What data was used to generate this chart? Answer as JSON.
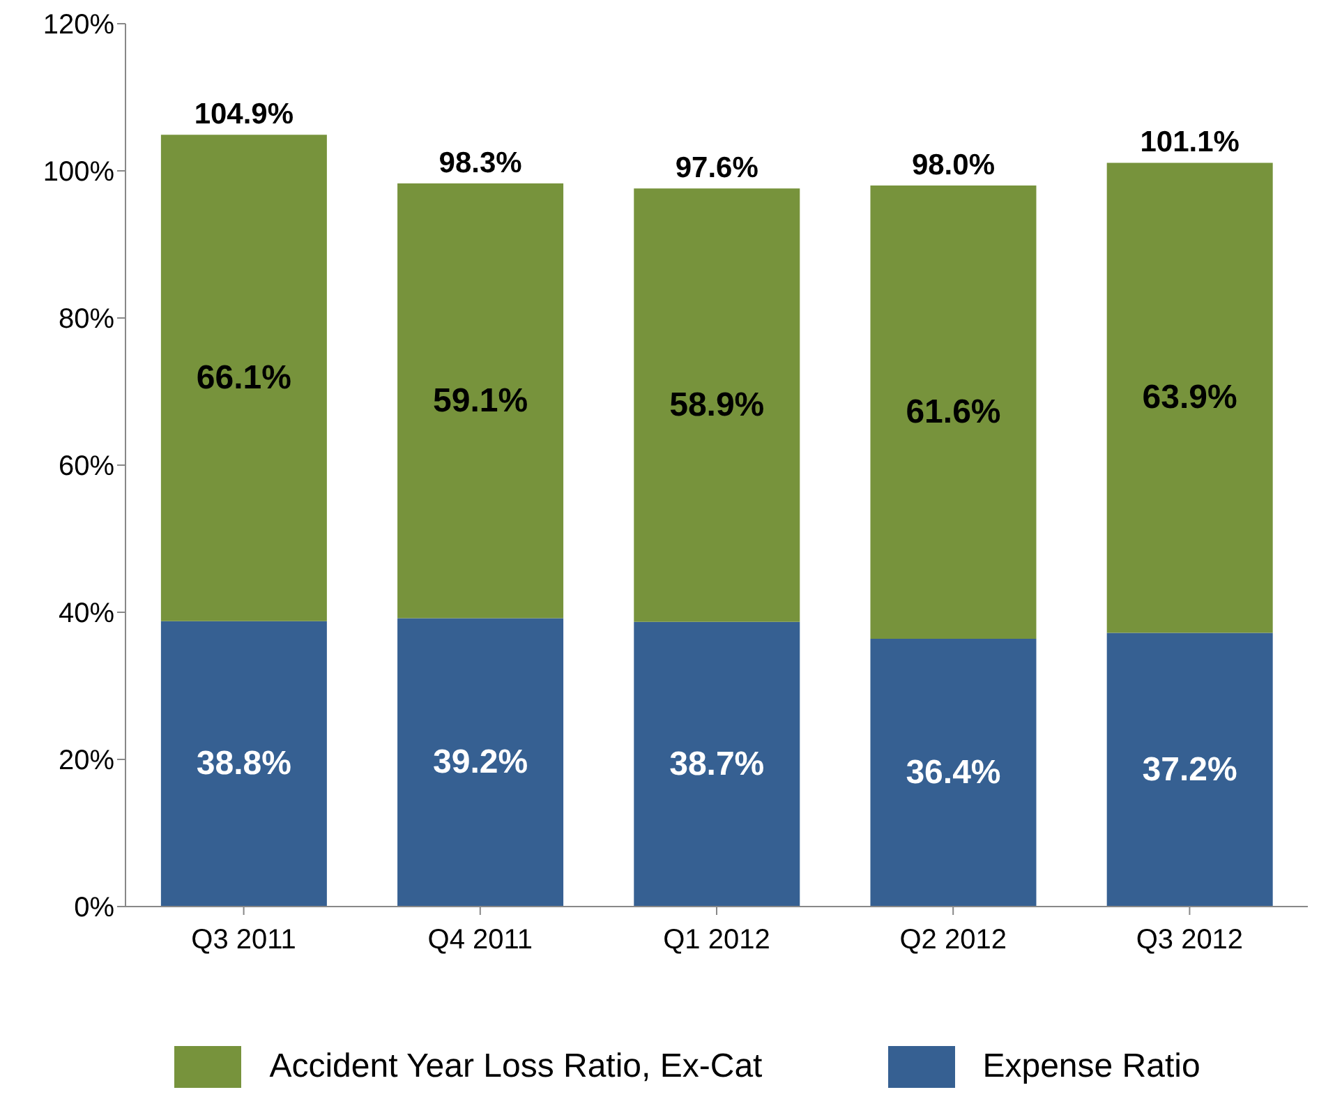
{
  "chart_data": {
    "type": "bar",
    "stacked": true,
    "categories": [
      "Q3 2011",
      "Q4 2011",
      "Q1 2012",
      "Q2 2012",
      "Q3 2012"
    ],
    "series": [
      {
        "name": "Expense Ratio",
        "color": "#366092",
        "values": [
          38.8,
          39.2,
          38.7,
          36.4,
          37.2
        ],
        "value_labels": [
          "38.8%",
          "39.2%",
          "38.7%",
          "36.4%",
          "37.2%"
        ]
      },
      {
        "name": "Accident Year Loss Ratio, Ex-Cat",
        "color": "#77933c",
        "values": [
          66.1,
          59.1,
          58.9,
          61.6,
          63.9
        ],
        "value_labels": [
          "66.1%",
          "59.1%",
          "58.9%",
          "61.6%",
          "63.9%"
        ]
      }
    ],
    "totals": [
      "104.9%",
      "98.3%",
      "97.6%",
      "98.0%",
      "101.1%"
    ],
    "ylim": [
      0,
      120
    ],
    "yticks": [
      {
        "value": 0,
        "label": "0%"
      },
      {
        "value": 20,
        "label": "20%"
      },
      {
        "value": 40,
        "label": "40%"
      },
      {
        "value": 60,
        "label": "60%"
      },
      {
        "value": 80,
        "label": "80%"
      },
      {
        "value": 100,
        "label": "100%"
      },
      {
        "value": 120,
        "label": "120%"
      }
    ],
    "grid": false,
    "legend": "bottom"
  }
}
